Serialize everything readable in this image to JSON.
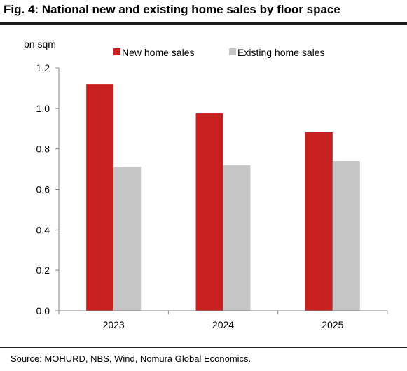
{
  "figure": {
    "title": "Fig. 4: National new and existing home sales by floor space",
    "source": "Source: MOHURD, NBS, Wind, Nomura Global Economics."
  },
  "colors": {
    "new_home_sales": "#c8201f",
    "existing_home_sales": "#c6c6c6",
    "axis": "#808080"
  },
  "chart_data": {
    "type": "bar",
    "title": "Fig. 4: National new and existing home sales by floor space",
    "xlabel": "",
    "ylabel": "bn sqm",
    "categories": [
      "2023",
      "2024",
      "2025"
    ],
    "series": [
      {
        "name": "New home sales",
        "values": [
          1.12,
          0.975,
          0.882
        ]
      },
      {
        "name": "Existing home sales",
        "values": [
          0.712,
          0.72,
          0.74
        ]
      }
    ],
    "ylim": [
      0,
      1.2
    ],
    "yticks": [
      "0.0",
      "0.2",
      "0.4",
      "0.6",
      "0.8",
      "1.0",
      "1.2"
    ],
    "legend_position": "top",
    "grid": false
  }
}
